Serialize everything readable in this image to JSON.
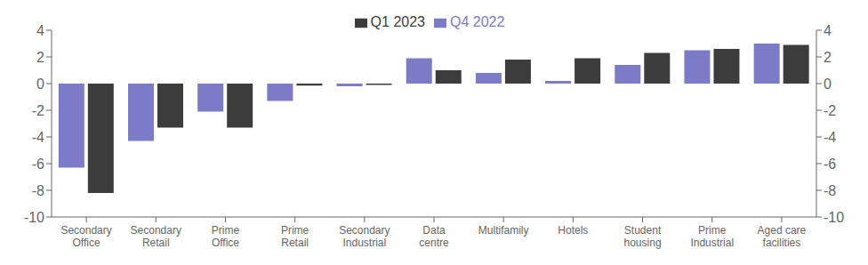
{
  "chart_data": {
    "type": "bar",
    "categories": [
      "Secondary\nOffice",
      "Secondary\nRetail",
      "Prime\nOffice",
      "Prime\nRetail",
      "Secondary\nIndustrial",
      "Data\ncentre",
      "Multifamily",
      "Hotels",
      "Student\nhousing",
      "Prime\nIndustrial",
      "Aged care\nfacilities"
    ],
    "series": [
      {
        "name": "Q4 2022",
        "color": "#7b7bc8",
        "values": [
          -6.3,
          -4.3,
          -2.1,
          -1.3,
          -0.2,
          1.9,
          0.8,
          0.2,
          1.4,
          2.5,
          3.0
        ]
      },
      {
        "name": "Q1 2023",
        "color": "#3c3c3c",
        "values": [
          -8.2,
          -3.3,
          -3.3,
          -0.15,
          -0.1,
          1.0,
          1.8,
          1.9,
          2.3,
          2.6,
          2.9
        ]
      }
    ],
    "ylim": [
      -10,
      4
    ],
    "yticks": [
      -10,
      -8,
      -6,
      -4,
      -2,
      0,
      2,
      4
    ],
    "y2lim": [
      -10,
      4
    ],
    "y2ticks": [
      -10,
      -8,
      -6,
      -4,
      -2,
      0,
      2,
      4
    ],
    "grid": false,
    "legend": "upper center"
  }
}
